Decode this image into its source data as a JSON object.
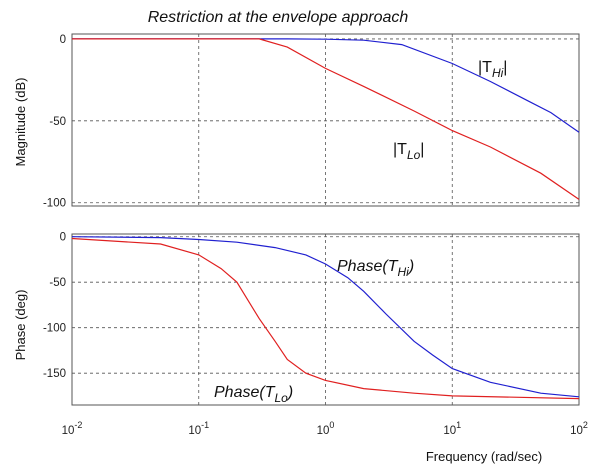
{
  "chart_data": [
    {
      "type": "line",
      "title": "Restriction at the envelope approach",
      "xlabel": "",
      "ylabel": "Magnitude (dB)",
      "xscale": "log",
      "xlim": [
        0.01,
        100
      ],
      "ylim": [
        -102,
        3
      ],
      "yticks": [
        0,
        -50,
        -100
      ],
      "xtick_labels": [],
      "grid": true,
      "series": [
        {
          "name": "|T_Hi|",
          "label_main": "|T",
          "label_sub": "Hi",
          "label_end": "|",
          "color": "#2020d0",
          "x": [
            0.01,
            0.1,
            0.5,
            1,
            2,
            4,
            10,
            20,
            40,
            60,
            100
          ],
          "y": [
            0,
            0,
            0,
            -0.2,
            -0.8,
            -3.5,
            -15,
            -26,
            -38,
            -45,
            -57
          ]
        },
        {
          "name": "|T_Lo|",
          "label_main": "|T",
          "label_sub": "Lo",
          "label_end": "|",
          "color": "#e02020",
          "x": [
            0.01,
            0.1,
            0.3,
            0.5,
            1,
            2,
            5,
            10,
            20,
            50,
            100
          ],
          "y": [
            0,
            0,
            0,
            -5,
            -18,
            -29,
            -44,
            -56,
            -66,
            -82,
            -98
          ]
        }
      ]
    },
    {
      "type": "line",
      "title": "",
      "xlabel": "Frequency (rad/sec)",
      "ylabel": "Phase (deg)",
      "xscale": "log",
      "xlim": [
        0.01,
        100
      ],
      "ylim": [
        -185,
        3
      ],
      "yticks": [
        0,
        -50,
        -100,
        -150
      ],
      "xtick_labels": [
        {
          "base": "10",
          "exp": "-2"
        },
        {
          "base": "10",
          "exp": "-1"
        },
        {
          "base": "10",
          "exp": "0"
        },
        {
          "base": "10",
          "exp": "1"
        },
        {
          "base": "10",
          "exp": "2"
        }
      ],
      "grid": true,
      "series": [
        {
          "name": "Phase(T_Hi)",
          "label_main": "Phase(T",
          "label_sub": "Hi",
          "label_end": ")",
          "color": "#2020d0",
          "x": [
            0.01,
            0.05,
            0.1,
            0.2,
            0.4,
            0.7,
            1,
            1.5,
            2,
            3,
            5,
            7,
            10,
            20,
            50,
            100
          ],
          "y": [
            0,
            -1,
            -3,
            -6,
            -12,
            -20,
            -30,
            -45,
            -60,
            -85,
            -115,
            -130,
            -145,
            -160,
            -172,
            -176
          ]
        },
        {
          "name": "Phase(T_Lo)",
          "label_main": "Phase(T",
          "label_sub": "Lo",
          "label_end": ")",
          "color": "#e02020",
          "x": [
            0.01,
            0.05,
            0.1,
            0.15,
            0.2,
            0.3,
            0.4,
            0.5,
            0.7,
            1,
            2,
            5,
            10,
            100
          ],
          "y": [
            -2,
            -8,
            -20,
            -35,
            -50,
            -90,
            -115,
            -135,
            -150,
            -158,
            -167,
            -172,
            -175,
            -178
          ]
        }
      ]
    }
  ]
}
